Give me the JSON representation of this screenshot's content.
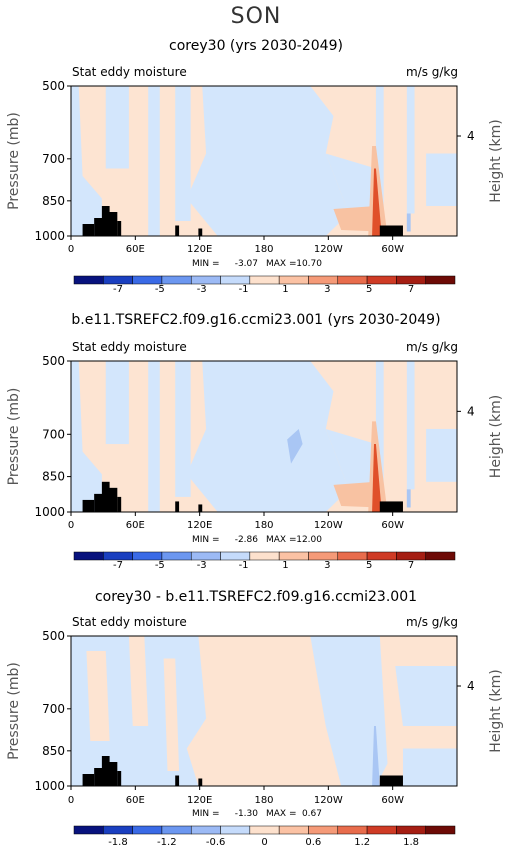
{
  "season_title": "SON",
  "chart_data": [
    {
      "type": "heatmap",
      "title": "corey30 (yrs 2030-2049)",
      "left_label": "Stat eddy moisture",
      "right_label": "m/s g/kg",
      "ylabel": "Pressure (mb)",
      "ylabel_right": "Height (km)",
      "y_ticks": [
        "500",
        "700",
        "850",
        "1000"
      ],
      "y_right_ticks": [
        "4"
      ],
      "x_ticks": [
        "0",
        "60E",
        "120E",
        "180",
        "120W",
        "60W"
      ],
      "min_label": "MIN =",
      "min_value": "-3.07",
      "max_label": "MAX =",
      "max_value": "10.70",
      "colorbar_labels": [
        "-7",
        "-5",
        "-3",
        "-1",
        "1",
        "3",
        "5",
        "7"
      ],
      "colorbar_colors": [
        "#08127d",
        "#1a3fc0",
        "#3a6ae6",
        "#6c97f0",
        "#9cbaf5",
        "#c5dbfb",
        "#fde1cd",
        "#fbc2a4",
        "#f59a78",
        "#e86c4c",
        "#cf3b25",
        "#a51e13",
        "#6d0a06"
      ],
      "feature_colors": {
        "base_neg": "#d3e6fc",
        "base_pos": "#fde4d2",
        "mid_neg": "#a9c6f4",
        "mid_pos": "#f8c2a2",
        "strong_pos": "#e0502a",
        "terrain": "#000000"
      }
    },
    {
      "type": "heatmap",
      "title": "b.e11.TSREFC2.f09.g16.ccmi23.001 (yrs 2030-2049)",
      "left_label": "Stat eddy moisture",
      "right_label": "m/s g/kg",
      "ylabel": "Pressure (mb)",
      "ylabel_right": "Height (km)",
      "y_ticks": [
        "500",
        "700",
        "850",
        "1000"
      ],
      "y_right_ticks": [
        "4"
      ],
      "x_ticks": [
        "0",
        "60E",
        "120E",
        "180",
        "120W",
        "60W"
      ],
      "min_label": "MIN =",
      "min_value": "-2.86",
      "max_label": "MAX =",
      "max_value": "12.00",
      "colorbar_labels": [
        "-7",
        "-5",
        "-3",
        "-1",
        "1",
        "3",
        "5",
        "7"
      ],
      "colorbar_colors": [
        "#08127d",
        "#1a3fc0",
        "#3a6ae6",
        "#6c97f0",
        "#9cbaf5",
        "#c5dbfb",
        "#fde1cd",
        "#fbc2a4",
        "#f59a78",
        "#e86c4c",
        "#cf3b25",
        "#a51e13",
        "#6d0a06"
      ],
      "feature_colors": {
        "base_neg": "#d3e6fc",
        "base_pos": "#fde4d2",
        "mid_neg": "#a9c6f4",
        "mid_pos": "#f8c2a2",
        "strong_pos": "#e0502a",
        "terrain": "#000000"
      }
    },
    {
      "type": "heatmap",
      "title": "corey30 - b.e11.TSREFC2.f09.g16.ccmi23.001",
      "left_label": "Stat eddy moisture",
      "right_label": "m/s g/kg",
      "ylabel": "Pressure (mb)",
      "ylabel_right": "Height (km)",
      "y_ticks": [
        "500",
        "700",
        "850",
        "1000"
      ],
      "y_right_ticks": [
        "4"
      ],
      "x_ticks": [
        "0",
        "60E",
        "120E",
        "180",
        "120W",
        "60W"
      ],
      "min_label": "MIN =",
      "min_value": "-1.30",
      "max_label": "MAX =",
      "max_value": "0.67",
      "colorbar_labels": [
        "-1.8",
        "-1.2",
        "-0.6",
        "0",
        "0.6",
        "1.2",
        "1.8"
      ],
      "colorbar_colors": [
        "#08127d",
        "#1a3fc0",
        "#3a6ae6",
        "#6c97f0",
        "#9cbaf5",
        "#c5dbfb",
        "#fde1cd",
        "#fbc2a4",
        "#f59a78",
        "#e86c4c",
        "#cf3b25",
        "#a51e13",
        "#6d0a06"
      ],
      "feature_colors": {
        "base_neg": "#d3e6fc",
        "base_pos": "#fde4d2",
        "mid_neg": "#a9c6f4",
        "mid_pos": "#f8c2a2",
        "strong_pos": "#e0502a",
        "terrain": "#000000"
      }
    }
  ]
}
